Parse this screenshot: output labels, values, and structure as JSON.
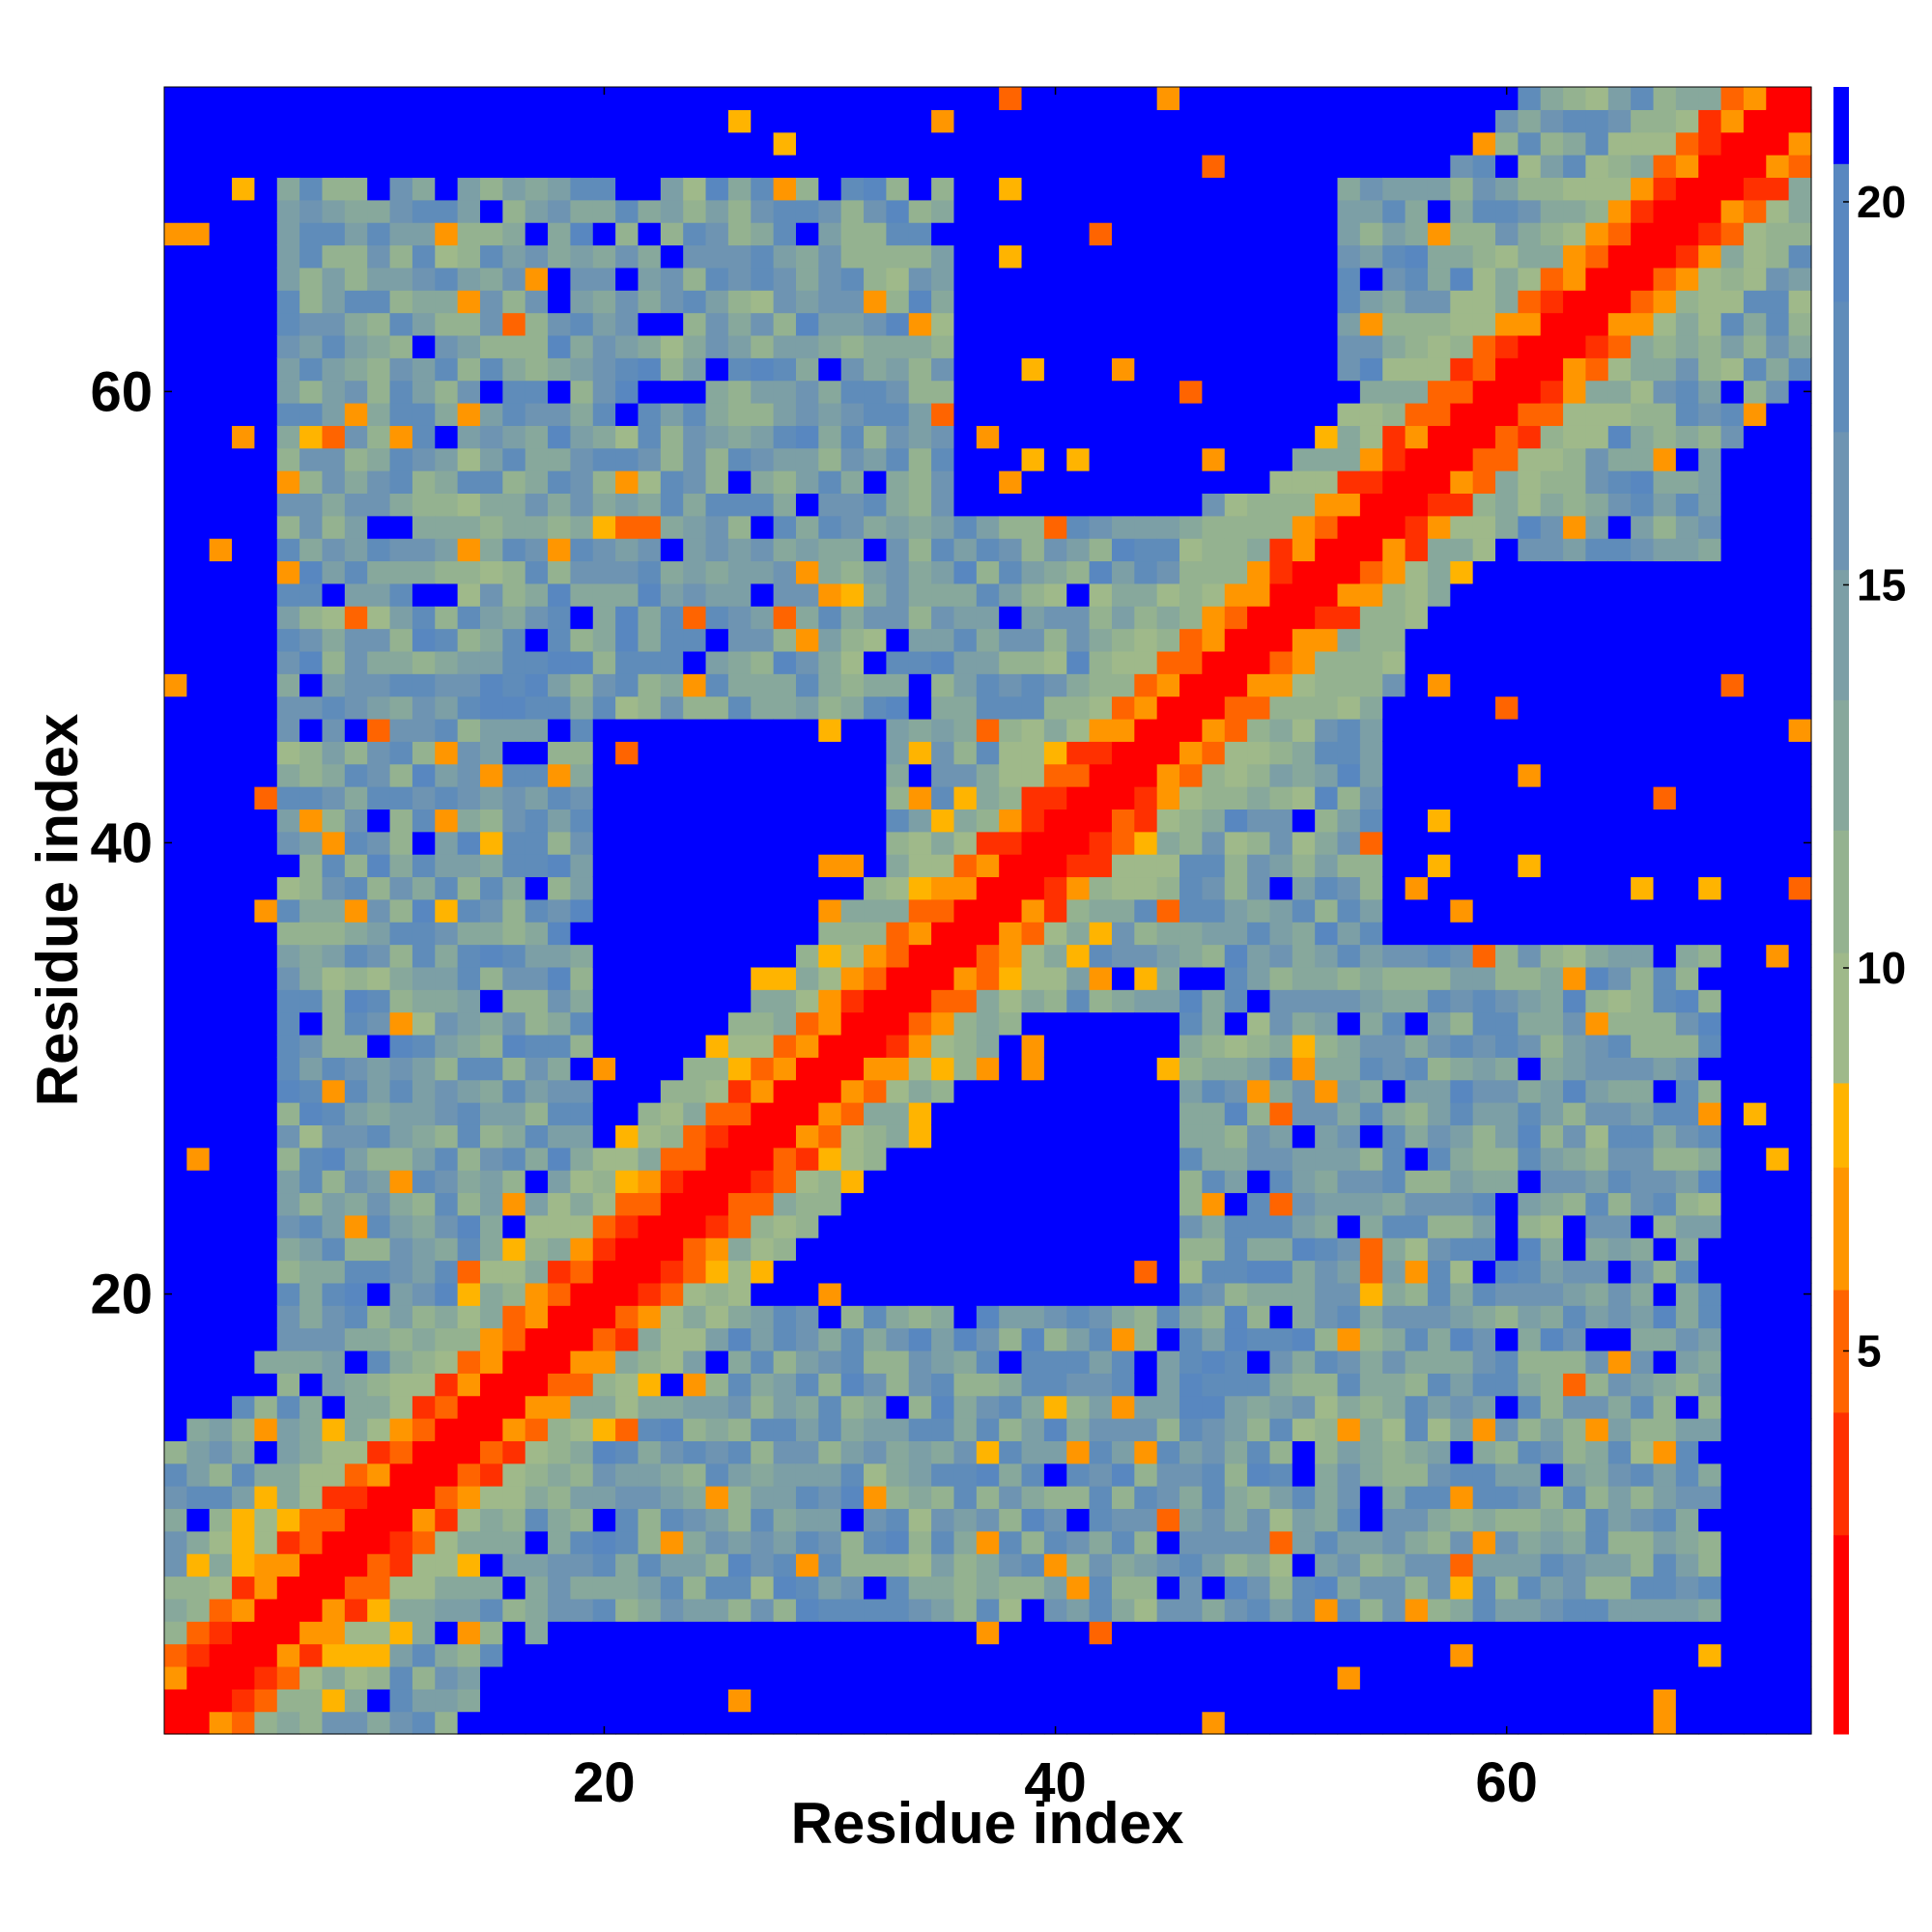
{
  "chart_data": {
    "type": "heatmap",
    "title": "",
    "xlabel": "Residue index",
    "ylabel": "Residue index",
    "n_residues": 73,
    "xlim": [
      1,
      73
    ],
    "ylim": [
      1,
      73
    ],
    "x_ticks": [
      20,
      40,
      60
    ],
    "y_ticks": [
      20,
      40,
      60
    ],
    "x_tick_labels": [
      "20",
      "40",
      "60"
    ],
    "y_tick_labels": [
      "20",
      "40",
      "60"
    ],
    "colorbar": {
      "min": 0,
      "max": 21.5,
      "ticks": [
        5,
        10,
        15,
        20
      ],
      "tick_labels": [
        "5",
        "10",
        "15",
        "20"
      ],
      "bands": [
        {
          "from": 0.0,
          "to": 2.6,
          "color": "#ff0000"
        },
        {
          "from": 2.6,
          "to": 4.2,
          "color": "#ff3000"
        },
        {
          "from": 4.2,
          "to": 5.8,
          "color": "#ff6400"
        },
        {
          "from": 5.8,
          "to": 7.4,
          "color": "#ff9600"
        },
        {
          "from": 7.4,
          "to": 8.5,
          "color": "#ffb400"
        },
        {
          "from": 8.5,
          "to": 10.2,
          "color": "#9fb98a"
        },
        {
          "from": 10.2,
          "to": 11.8,
          "color": "#94b290"
        },
        {
          "from": 11.8,
          "to": 13.5,
          "color": "#87a89c"
        },
        {
          "from": 13.5,
          "to": 15.2,
          "color": "#7c9fa6"
        },
        {
          "from": 15.2,
          "to": 17.0,
          "color": "#6e94b2"
        },
        {
          "from": 17.0,
          "to": 18.7,
          "color": "#5f8cba"
        },
        {
          "from": 18.7,
          "to": 20.5,
          "color": "#5887c0"
        },
        {
          "from": 20.5,
          "to": 21.5,
          "color": "#0000ff"
        }
      ]
    },
    "matrix_description": "pairwise distance map, symmetric; diagonal red, off-diagonal diagonal band orange; far pairs blue",
    "blue_regions": [
      {
        "x": [
          20,
          32
        ],
        "y": [
          27,
          45
        ]
      },
      {
        "x": [
          27,
          45
        ],
        "y": [
          20,
          32
        ]
      },
      {
        "x": [
          36,
          46
        ],
        "y": [
          55,
          70
        ]
      },
      {
        "x": [
          55,
          70
        ],
        "y": [
          36,
          46
        ]
      },
      {
        "x": [
          56,
          73
        ],
        "y": [
          40,
          52
        ]
      },
      {
        "x": [
          40,
          52
        ],
        "y": [
          56,
          73
        ]
      }
    ]
  }
}
